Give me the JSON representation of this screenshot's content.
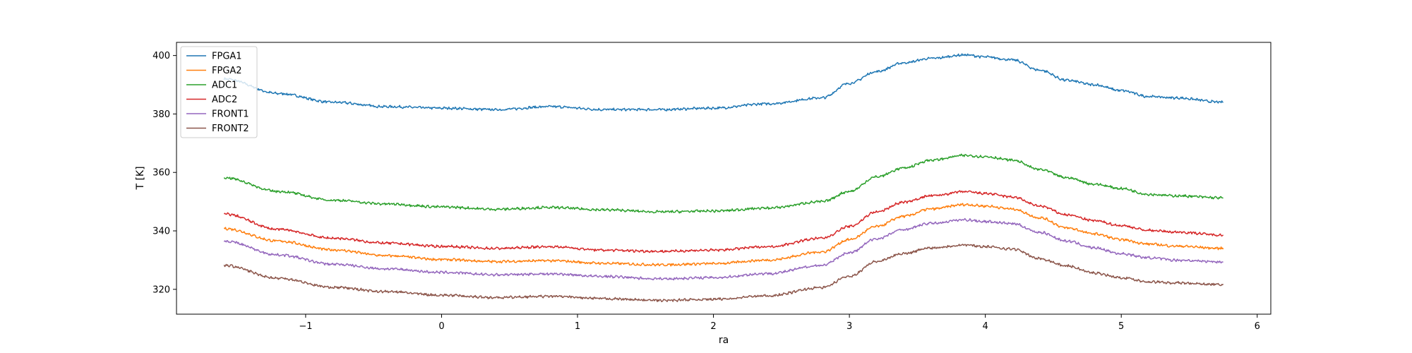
{
  "chart_data": {
    "type": "line",
    "xlabel": "ra",
    "ylabel": "T [K]",
    "xlim": [
      -1.95,
      6.1
    ],
    "ylim": [
      311.5,
      404.5
    ],
    "xticks": [
      -1,
      0,
      1,
      2,
      3,
      4,
      5,
      6
    ],
    "yticks": [
      320,
      340,
      360,
      380,
      400
    ],
    "legend_position": "upper-left",
    "grid": false,
    "x": [
      -1.6,
      -1.2,
      -0.8,
      -0.4,
      0.0,
      0.4,
      0.8,
      1.2,
      1.6,
      2.0,
      2.4,
      2.8,
      3.0,
      3.2,
      3.4,
      3.6,
      3.85,
      4.0,
      4.2,
      4.4,
      4.6,
      4.8,
      5.0,
      5.2,
      5.4,
      5.75
    ],
    "series": [
      {
        "name": "FPGA1",
        "color": "#1f77b4",
        "values": [
          392,
          387,
          384,
          382.5,
          382,
          381.5,
          382.5,
          381.5,
          381.5,
          382,
          383.5,
          385.5,
          390.5,
          394.5,
          397.5,
          399,
          400.2,
          399.5,
          398.5,
          395,
          391.5,
          390,
          388,
          386,
          385.5,
          384
        ]
      },
      {
        "name": "FPGA2",
        "color": "#ff7f0e",
        "values": [
          340.8,
          336.5,
          333.5,
          331.5,
          330.2,
          329.5,
          329.8,
          328.9,
          328.4,
          328.8,
          330,
          332.8,
          337,
          341.5,
          345,
          347.5,
          349,
          348.5,
          347.5,
          344.5,
          341,
          339,
          337,
          335.5,
          334.8,
          334
        ]
      },
      {
        "name": "ADC1",
        "color": "#2ca02c",
        "values": [
          358.2,
          353.5,
          350.5,
          349.2,
          348.2,
          347.4,
          348,
          347.2,
          346.5,
          346.8,
          347.8,
          350,
          353.5,
          358.5,
          361.5,
          364.2,
          365.8,
          365.4,
          364.2,
          361,
          358.2,
          356,
          354.5,
          352.5,
          352,
          351.3
        ]
      },
      {
        "name": "ADC2",
        "color": "#d62728",
        "values": [
          345.8,
          340.5,
          337.5,
          335.8,
          334.7,
          334,
          334.6,
          333.4,
          333,
          333.4,
          334.6,
          337.5,
          341.5,
          346.5,
          349.8,
          352,
          353.4,
          352.8,
          351.6,
          348.5,
          345.5,
          343.5,
          341.8,
          340.2,
          339.6,
          338.6
        ]
      },
      {
        "name": "FRONT1",
        "color": "#9467bd",
        "values": [
          336.5,
          331.8,
          328.6,
          327,
          325.8,
          325,
          325.3,
          324.4,
          323.6,
          324,
          325.4,
          328.2,
          332.5,
          337.3,
          340.5,
          342.6,
          343.8,
          343.2,
          342.5,
          339.5,
          336.5,
          334.2,
          332.2,
          330.8,
          330,
          329.4
        ]
      },
      {
        "name": "FRONT2",
        "color": "#8c564b",
        "values": [
          328.2,
          323.8,
          320.7,
          319.2,
          318,
          317.2,
          317.6,
          316.8,
          316.2,
          316.6,
          317.8,
          320.6,
          324.5,
          329.5,
          332.3,
          334.2,
          335.2,
          334.6,
          333.8,
          330.5,
          328,
          325.6,
          324,
          322.6,
          322.2,
          321.6
        ]
      }
    ]
  }
}
